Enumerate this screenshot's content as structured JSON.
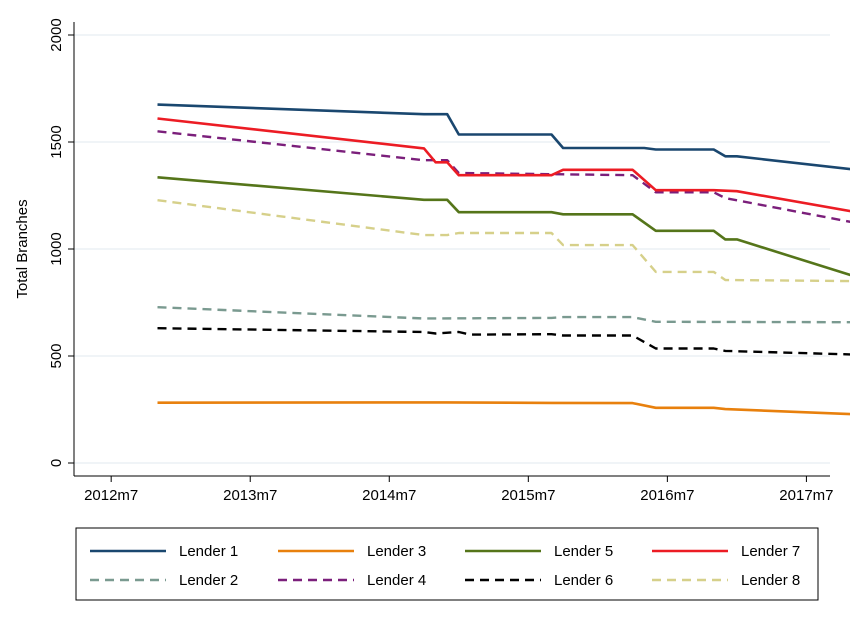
{
  "chart_data": {
    "type": "line",
    "title": "",
    "xlabel": "",
    "ylabel": "Total Branches",
    "x_ticks": [
      "2012m7",
      "2013m7",
      "2014m7",
      "2015m7",
      "2016m7",
      "2017m7"
    ],
    "y_ticks": [
      0,
      500,
      1000,
      1500,
      2000
    ],
    "xlim": [
      "2012-05",
      "2017-08"
    ],
    "ylim": [
      0,
      2000
    ],
    "grid": "horizontal",
    "legend_position": "bottom",
    "series": [
      {
        "name": "Lender 1",
        "color": "#1a476f",
        "dash": "solid",
        "points": [
          [
            "2012-11",
            1675
          ],
          [
            "2014-10",
            1630
          ],
          [
            "2014-12",
            1630
          ],
          [
            "2015-01",
            1535
          ],
          [
            "2015-09",
            1535
          ],
          [
            "2015-10",
            1472
          ],
          [
            "2016-05",
            1472
          ],
          [
            "2016-06",
            1465
          ],
          [
            "2016-11",
            1465
          ],
          [
            "2016-12",
            1433
          ],
          [
            "2017-01",
            1433
          ],
          [
            "2017-11",
            1372
          ]
        ]
      },
      {
        "name": "Lender 2",
        "color": "#7a9a90",
        "dash": "dashed",
        "points": [
          [
            "2012-11",
            728
          ],
          [
            "2014-10",
            675
          ],
          [
            "2015-09",
            678
          ],
          [
            "2015-10",
            682
          ],
          [
            "2016-04",
            682
          ],
          [
            "2016-06",
            660
          ],
          [
            "2017-11",
            658
          ]
        ]
      },
      {
        "name": "Lender 3",
        "color": "#e8800d",
        "dash": "solid",
        "points": [
          [
            "2012-11",
            282
          ],
          [
            "2014-12",
            283
          ],
          [
            "2015-09",
            281
          ],
          [
            "2016-04",
            280
          ],
          [
            "2016-06",
            258
          ],
          [
            "2016-11",
            258
          ],
          [
            "2016-12",
            252
          ],
          [
            "2017-11",
            228
          ]
        ]
      },
      {
        "name": "Lender 4",
        "color": "#7b1f7b",
        "dash": "dashed",
        "points": [
          [
            "2012-11",
            1550
          ],
          [
            "2014-10",
            1415
          ],
          [
            "2014-12",
            1415
          ],
          [
            "2015-01",
            1355
          ],
          [
            "2016-04",
            1345
          ],
          [
            "2016-06",
            1265
          ],
          [
            "2016-11",
            1265
          ],
          [
            "2016-12",
            1238
          ],
          [
            "2017-11",
            1125
          ]
        ]
      },
      {
        "name": "Lender 5",
        "color": "#55751a",
        "dash": "solid",
        "points": [
          [
            "2012-11",
            1335
          ],
          [
            "2014-10",
            1230
          ],
          [
            "2014-12",
            1230
          ],
          [
            "2015-01",
            1172
          ],
          [
            "2015-09",
            1172
          ],
          [
            "2015-10",
            1162
          ],
          [
            "2016-04",
            1162
          ],
          [
            "2016-06",
            1085
          ],
          [
            "2016-11",
            1085
          ],
          [
            "2016-12",
            1045
          ],
          [
            "2017-01",
            1045
          ],
          [
            "2017-11",
            875
          ]
        ]
      },
      {
        "name": "Lender 6",
        "color": "#000000",
        "dash": "dashed",
        "points": [
          [
            "2012-11",
            630
          ],
          [
            "2014-10",
            612
          ],
          [
            "2014-11",
            605
          ],
          [
            "2015-01",
            612
          ],
          [
            "2015-02",
            600
          ],
          [
            "2015-09",
            602
          ],
          [
            "2015-10",
            596
          ],
          [
            "2016-04",
            596
          ],
          [
            "2016-06",
            535
          ],
          [
            "2016-11",
            535
          ],
          [
            "2016-12",
            524
          ],
          [
            "2017-11",
            507
          ]
        ]
      },
      {
        "name": "Lender 7",
        "color": "#ec1c24",
        "dash": "solid",
        "points": [
          [
            "2012-11",
            1610
          ],
          [
            "2014-10",
            1470
          ],
          [
            "2014-11",
            1405
          ],
          [
            "2014-12",
            1405
          ],
          [
            "2015-01",
            1345
          ],
          [
            "2015-09",
            1345
          ],
          [
            "2015-10",
            1370
          ],
          [
            "2016-04",
            1370
          ],
          [
            "2016-06",
            1275
          ],
          [
            "2016-11",
            1275
          ],
          [
            "2017-01",
            1270
          ],
          [
            "2017-11",
            1175
          ]
        ]
      },
      {
        "name": "Lender 8",
        "color": "#d6d08a",
        "dash": "dashed",
        "points": [
          [
            "2012-11",
            1228
          ],
          [
            "2014-10",
            1065
          ],
          [
            "2014-12",
            1065
          ],
          [
            "2015-01",
            1075
          ],
          [
            "2015-09",
            1075
          ],
          [
            "2015-10",
            1018
          ],
          [
            "2016-04",
            1018
          ],
          [
            "2016-06",
            893
          ],
          [
            "2016-11",
            893
          ],
          [
            "2016-12",
            855
          ],
          [
            "2017-11",
            850
          ]
        ]
      }
    ]
  }
}
